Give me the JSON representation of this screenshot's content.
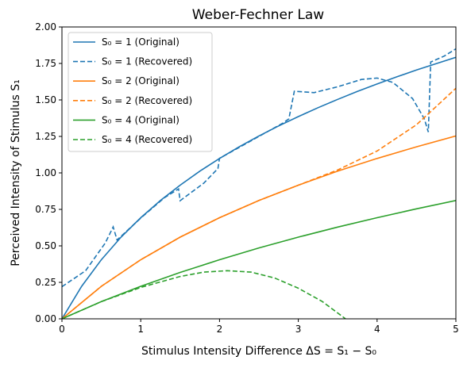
{
  "chart_data": {
    "type": "line",
    "title": "Weber-Fechner Law",
    "xlabel": "Stimulus Intensity Difference ΔS = S₁ − S₀",
    "ylabel": "Perceived Intensity of Stimulus S₁",
    "xlim": [
      0,
      5
    ],
    "ylim": [
      0,
      2.0
    ],
    "xticks": [
      "0",
      "1",
      "2",
      "3",
      "4",
      "5"
    ],
    "yticks": [
      "0.00",
      "0.25",
      "0.50",
      "0.75",
      "1.00",
      "1.25",
      "1.50",
      "1.75",
      "2.00"
    ],
    "grid": false,
    "legend_position": "upper-left",
    "series": [
      {
        "name": "S₀ = 1 (Original)",
        "color": "#1f77b4",
        "dash": "solid",
        "points": [
          [
            0,
            0
          ],
          [
            0.25,
            0.223
          ],
          [
            0.5,
            0.405
          ],
          [
            0.75,
            0.56
          ],
          [
            1.0,
            0.693
          ],
          [
            1.25,
            0.811
          ],
          [
            1.5,
            0.916
          ],
          [
            1.75,
            1.012
          ],
          [
            2.0,
            1.099
          ],
          [
            2.25,
            1.179
          ],
          [
            2.5,
            1.253
          ],
          [
            2.75,
            1.322
          ],
          [
            3.0,
            1.386
          ],
          [
            3.25,
            1.447
          ],
          [
            3.5,
            1.504
          ],
          [
            3.75,
            1.558
          ],
          [
            4.0,
            1.609
          ],
          [
            4.25,
            1.658
          ],
          [
            4.5,
            1.705
          ],
          [
            4.75,
            1.749
          ],
          [
            5.0,
            1.792
          ]
        ]
      },
      {
        "name": "S₀ = 1 (Recovered)",
        "color": "#1f77b4",
        "dash": "dashed",
        "points": [
          [
            0,
            0.22
          ],
          [
            0.3,
            0.33
          ],
          [
            0.55,
            0.52
          ],
          [
            0.65,
            0.63
          ],
          [
            0.7,
            0.54
          ],
          [
            1.0,
            0.69
          ],
          [
            1.3,
            0.83
          ],
          [
            1.48,
            0.89
          ],
          [
            1.5,
            0.81
          ],
          [
            1.8,
            0.93
          ],
          [
            1.98,
            1.03
          ],
          [
            2.0,
            1.1
          ],
          [
            2.5,
            1.25
          ],
          [
            2.8,
            1.34
          ],
          [
            2.88,
            1.37
          ],
          [
            2.95,
            1.56
          ],
          [
            3.2,
            1.55
          ],
          [
            3.5,
            1.59
          ],
          [
            3.8,
            1.64
          ],
          [
            4.0,
            1.65
          ],
          [
            4.2,
            1.62
          ],
          [
            4.45,
            1.51
          ],
          [
            4.6,
            1.37
          ],
          [
            4.65,
            1.28
          ],
          [
            4.68,
            1.76
          ],
          [
            4.85,
            1.8
          ],
          [
            5.0,
            1.85
          ]
        ]
      },
      {
        "name": "S₀ = 2 (Original)",
        "color": "#ff7f0e",
        "dash": "solid",
        "points": [
          [
            0,
            0
          ],
          [
            0.5,
            0.223
          ],
          [
            1.0,
            0.405
          ],
          [
            1.5,
            0.56
          ],
          [
            2.0,
            0.693
          ],
          [
            2.5,
            0.811
          ],
          [
            3.0,
            0.916
          ],
          [
            3.5,
            1.012
          ],
          [
            4.0,
            1.099
          ],
          [
            4.5,
            1.179
          ],
          [
            5.0,
            1.253
          ]
        ]
      },
      {
        "name": "S₀ = 2 (Recovered)",
        "color": "#ff7f0e",
        "dash": "dashed",
        "points": [
          [
            0,
            0
          ],
          [
            0.5,
            0.223
          ],
          [
            1.0,
            0.405
          ],
          [
            1.5,
            0.56
          ],
          [
            2.0,
            0.693
          ],
          [
            2.5,
            0.811
          ],
          [
            3.0,
            0.916
          ],
          [
            3.5,
            1.02
          ],
          [
            4.0,
            1.15
          ],
          [
            4.5,
            1.33
          ],
          [
            5.0,
            1.58
          ]
        ]
      },
      {
        "name": "S₀ = 4 (Original)",
        "color": "#2ca02c",
        "dash": "solid",
        "points": [
          [
            0,
            0
          ],
          [
            0.5,
            0.118
          ],
          [
            1.0,
            0.223
          ],
          [
            1.5,
            0.318
          ],
          [
            2.0,
            0.405
          ],
          [
            2.5,
            0.486
          ],
          [
            3.0,
            0.56
          ],
          [
            3.5,
            0.629
          ],
          [
            4.0,
            0.693
          ],
          [
            4.5,
            0.754
          ],
          [
            5.0,
            0.811
          ]
        ]
      },
      {
        "name": "S₀ = 4 (Recovered)",
        "color": "#2ca02c",
        "dash": "dashed",
        "points": [
          [
            0,
            0
          ],
          [
            0.5,
            0.118
          ],
          [
            1.0,
            0.215
          ],
          [
            1.5,
            0.29
          ],
          [
            1.8,
            0.32
          ],
          [
            2.1,
            0.33
          ],
          [
            2.4,
            0.32
          ],
          [
            2.7,
            0.28
          ],
          [
            3.0,
            0.21
          ],
          [
            3.3,
            0.12
          ],
          [
            3.6,
            0.0
          ]
        ]
      }
    ]
  }
}
